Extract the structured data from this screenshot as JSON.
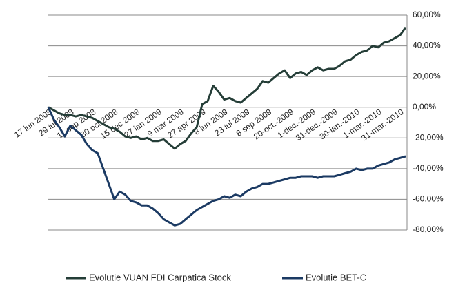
{
  "chart_data": {
    "type": "line",
    "categories": [
      "17 iun 2008",
      null,
      null,
      null,
      "29 iul 2008",
      null,
      null,
      null,
      "11 sep 2008",
      null,
      null,
      null,
      "30 oct 2008",
      null,
      null,
      null,
      "15 dec 2008",
      null,
      null,
      null,
      "27 ian 2009",
      null,
      null,
      null,
      "9 mar 2009",
      null,
      null,
      null,
      "27 apr 2009",
      null,
      null,
      null,
      "8 iun 2009",
      null,
      null,
      null,
      "23 iul 2009",
      null,
      null,
      null,
      "8 sep 2009",
      null,
      null,
      null,
      "20-oct.-2009",
      null,
      null,
      null,
      "1-dec.-2009",
      null,
      null,
      null,
      "31-dec.-2009",
      null,
      null,
      null,
      "30-ian.-2010",
      null,
      null,
      null,
      "1-mar.-2010",
      null,
      null,
      null,
      "31-mar.-2010",
      null
    ],
    "series": [
      {
        "name": "Evolutie VUAN FDI Carpatica Stock",
        "color": "#243d37",
        "values": [
          0,
          -2,
          -4,
          -5,
          -5,
          -6,
          -5,
          -6,
          -7,
          -9,
          -11,
          -13,
          -14,
          -16,
          -19,
          -20,
          -19,
          -21,
          -20,
          -22,
          -22,
          -21,
          -24,
          -27,
          -24,
          -22,
          -17,
          -13,
          2,
          4,
          14,
          10,
          5,
          6,
          4,
          3,
          6,
          9,
          12,
          17,
          16,
          19,
          22,
          24,
          19,
          22,
          23,
          21,
          24,
          26,
          24,
          25,
          25,
          27,
          30,
          31,
          34,
          36,
          37,
          40,
          39,
          42,
          43,
          45,
          47,
          52
        ]
      },
      {
        "name": "Evolutie BET-C",
        "color": "#1b3a63",
        "values": [
          0,
          -8,
          -13,
          -19,
          -12,
          -15,
          -18,
          -24,
          -28,
          -30,
          -40,
          -50,
          -60,
          -55,
          -57,
          -61,
          -62,
          -64,
          -64,
          -66,
          -69,
          -73,
          -75,
          -77,
          -76,
          -73,
          -70,
          -67,
          -65,
          -63,
          -61,
          -60,
          -58,
          -59,
          -57,
          -58,
          -55,
          -53,
          -52,
          -50,
          -50,
          -49,
          -48,
          -47,
          -46,
          -46,
          -45,
          -45,
          -45,
          -46,
          -45,
          -45,
          -45,
          -44,
          -43,
          -42,
          -40,
          -41,
          -40,
          -40,
          -38,
          -37,
          -36,
          -34,
          -33,
          -32
        ]
      }
    ],
    "ylim": [
      -80,
      60
    ],
    "yticks": [
      {
        "value": -80,
        "label": "-80,00%"
      },
      {
        "value": -60,
        "label": "-60,00%"
      },
      {
        "value": -40,
        "label": "-40,00%"
      },
      {
        "value": -20,
        "label": "-20,00%"
      },
      {
        "value": 0,
        "label": "0,00%"
      },
      {
        "value": 20,
        "label": "20,00%"
      },
      {
        "value": 40,
        "label": "40,00%"
      },
      {
        "value": 60,
        "label": "60,00%"
      }
    ],
    "grid": true,
    "legend": "bottom"
  }
}
